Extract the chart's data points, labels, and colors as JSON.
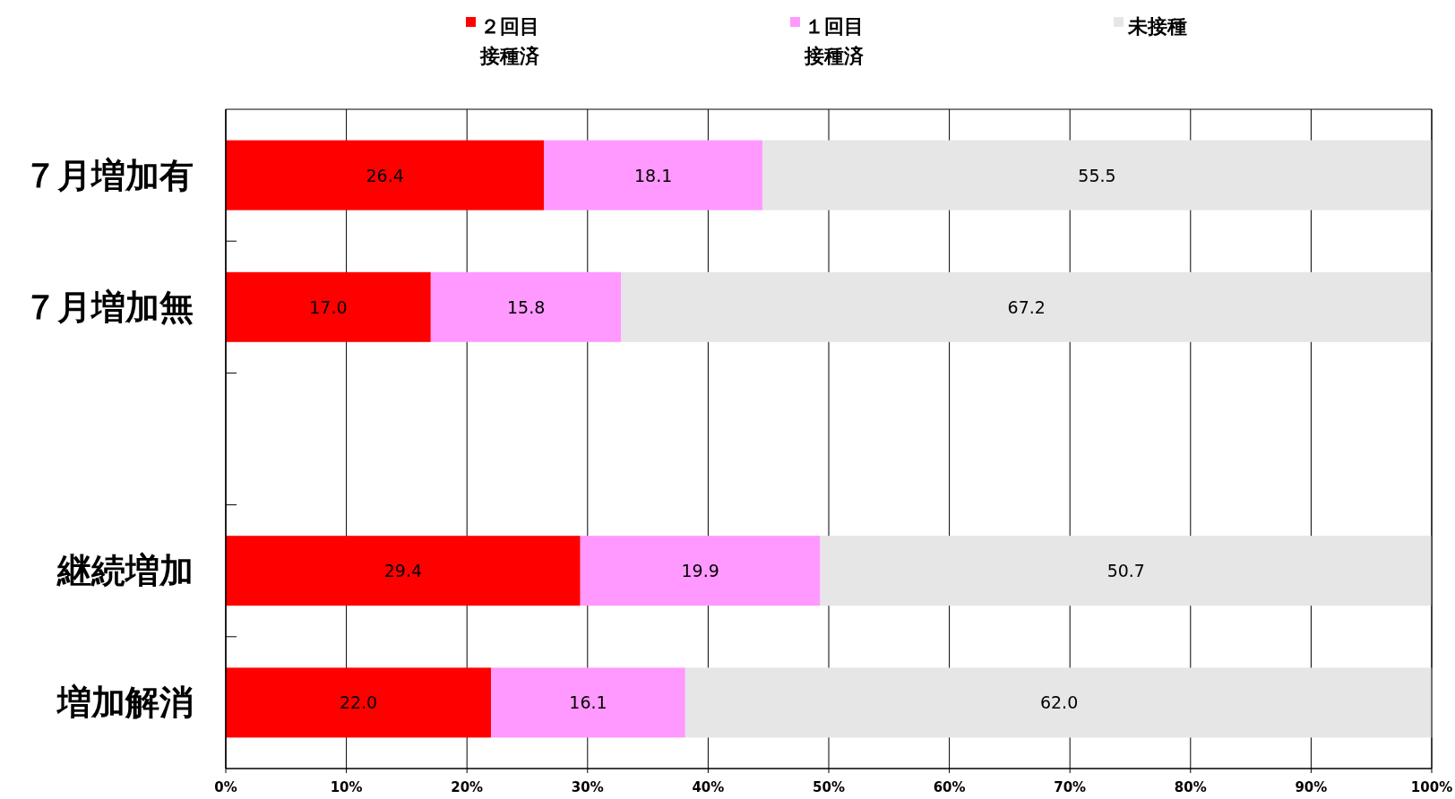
{
  "chart_data": {
    "type": "bar",
    "orientation": "horizontal",
    "stacked": true,
    "categories": [
      "７月増加有",
      "７月増加無",
      null,
      "継続増加",
      "増加解消"
    ],
    "series": [
      {
        "name": "２回目接種済",
        "color": "#ff0000",
        "values": [
          26.4,
          17.0,
          null,
          29.4,
          22.0
        ],
        "value_labels": [
          "26.4",
          "17.0",
          null,
          "29.4",
          "22.0"
        ]
      },
      {
        "name": "１回目接種済",
        "color": "#ff99ff",
        "values": [
          18.1,
          15.8,
          null,
          19.9,
          16.1
        ],
        "value_labels": [
          "18.1",
          "15.8",
          null,
          "19.9",
          "16.1"
        ]
      },
      {
        "name": "未接種",
        "color": "#e6e6e6",
        "values": [
          55.5,
          67.2,
          null,
          50.7,
          62.0
        ],
        "value_labels": [
          "55.5",
          "67.2",
          null,
          "50.7",
          "62.0"
        ]
      }
    ],
    "xlim": [
      0,
      100
    ],
    "xticks": [
      {
        "value": 0,
        "label": "0%"
      },
      {
        "value": 10,
        "label": "10%"
      },
      {
        "value": 20,
        "label": "20%"
      },
      {
        "value": 30,
        "label": "30%"
      },
      {
        "value": 40,
        "label": "40%"
      },
      {
        "value": 50,
        "label": "50%"
      },
      {
        "value": 60,
        "label": "60%"
      },
      {
        "value": 70,
        "label": "70%"
      },
      {
        "value": 80,
        "label": "80%"
      },
      {
        "value": 90,
        "label": "90%"
      },
      {
        "value": 100,
        "label": "100%"
      }
    ],
    "grid": "x",
    "legend": "top"
  }
}
